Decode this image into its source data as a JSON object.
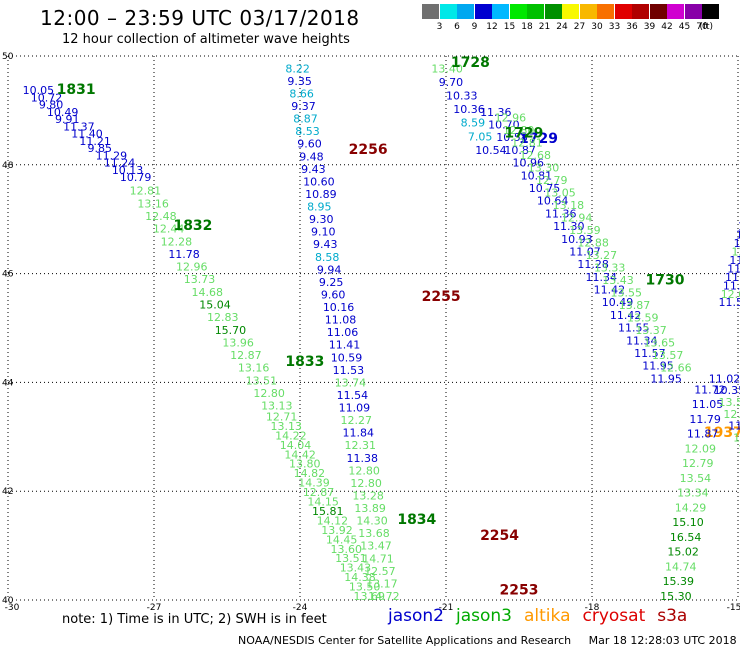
{
  "title": "12:00 – 23:59 UTC 03/17/2018",
  "subtitle": "12 hour collection of altimeter wave heights",
  "colorbar": {
    "unit": "(ft)",
    "colors": [
      "#707070",
      "#00e8e8",
      "#00a8f0",
      "#0000d0",
      "#00b8ff",
      "#00e800",
      "#00c000",
      "#009000",
      "#f8f800",
      "#f8b800",
      "#f87000",
      "#e00000",
      "#b00000",
      "#700000",
      "#d000d0",
      "#8800a8",
      "#000000"
    ],
    "labels": [
      "3",
      "6",
      "9",
      "12",
      "15",
      "18",
      "21",
      "24",
      "27",
      "30",
      "33",
      "36",
      "39",
      "42",
      "45",
      "70"
    ]
  },
  "note": "note: 1) Time is in UTC; 2) SWH is in feet",
  "legend": [
    {
      "name": "jason2",
      "color": "#0000cc"
    },
    {
      "name": "jason3",
      "color": "#00aa00"
    },
    {
      "name": "altika",
      "color": "#ff9900"
    },
    {
      "name": "cryosat",
      "color": "#dd0000"
    },
    {
      "name": "s3a",
      "color": "#aa0000"
    }
  ],
  "footer": {
    "credit": "NOAA/NESDIS Center for Satellite Applications and Research",
    "timestamp": "Mar 18 12:28:03 UTC 2018"
  },
  "chart_data": {
    "type": "scatter",
    "xlim": [
      -30,
      -15
    ],
    "ylim": [
      40,
      50
    ],
    "x_ticks": [
      -30,
      -27,
      -24,
      -21,
      -18,
      -15
    ],
    "y_ticks": [
      40,
      42,
      44,
      46,
      48,
      50
    ],
    "grid": true,
    "tracks": [
      {
        "label": "1831",
        "label_pos": [
          -29.0,
          49.3
        ],
        "color": "#007700",
        "start": [
          -29.7,
          49.3
        ],
        "end": [
          -27.7,
          47.7
        ],
        "points": [
          {
            "v": "10.05",
            "c": "#0000cc"
          },
          {
            "v": "10.72",
            "c": "#0000cc"
          },
          {
            "v": "9.80",
            "c": "#0000cc"
          },
          {
            "v": "10.49",
            "c": "#0000cc"
          },
          {
            "v": "9.91",
            "c": "#0000cc"
          },
          {
            "v": "11.37",
            "c": "#0000cc"
          },
          {
            "v": "11.40",
            "c": "#0000cc"
          },
          {
            "v": "11.21",
            "c": "#0000cc"
          },
          {
            "v": "9.85",
            "c": "#0000cc"
          },
          {
            "v": "11.29",
            "c": "#0000cc"
          },
          {
            "v": "11.24",
            "c": "#0000cc"
          },
          {
            "v": "10.13",
            "c": "#0000cc"
          },
          {
            "v": "10.79",
            "c": "#0000cc"
          }
        ]
      },
      {
        "label": "1832",
        "label_pos": [
          -26.6,
          46.8
        ],
        "color": "#007700",
        "start": [
          -27.5,
          47.45
        ],
        "end": [
          -24.8,
          43.5
        ],
        "points": [
          {
            "v": "12.81",
            "c": "#66dd66"
          },
          {
            "v": "13.16",
            "c": "#66dd66"
          },
          {
            "v": "12.48",
            "c": "#66dd66"
          },
          {
            "v": "12.44",
            "c": "#66dd66"
          },
          {
            "v": "12.28",
            "c": "#66dd66"
          },
          {
            "v": "11.78",
            "c": "#0000cc"
          },
          {
            "v": "12.96",
            "c": "#66dd66"
          },
          {
            "v": "13.73",
            "c": "#66dd66"
          },
          {
            "v": "14.68",
            "c": "#66dd66"
          },
          {
            "v": "15.04",
            "c": "#008800"
          },
          {
            "v": "12.83",
            "c": "#66dd66"
          },
          {
            "v": "15.70",
            "c": "#008800"
          },
          {
            "v": "13.96",
            "c": "#66dd66"
          },
          {
            "v": "12.87",
            "c": "#66dd66"
          },
          {
            "v": "13.16",
            "c": "#66dd66"
          },
          {
            "v": "13.51",
            "c": "#66dd66"
          },
          {
            "v": "12.80",
            "c": "#66dd66"
          },
          {
            "v": "13.13",
            "c": "#66dd66"
          }
        ]
      },
      {
        "label": "1833",
        "label_pos": [
          -24.3,
          44.3
        ],
        "color": "#007700",
        "start": [
          -24.7,
          43.3
        ],
        "end": [
          -22.9,
          40.0
        ],
        "points": [
          {
            "v": "12.71",
            "c": "#66dd66"
          },
          {
            "v": "13.13",
            "c": "#66dd66"
          },
          {
            "v": "14.22",
            "c": "#66dd66"
          },
          {
            "v": "14.04",
            "c": "#66dd66"
          },
          {
            "v": "14.42",
            "c": "#66dd66"
          },
          {
            "v": "13.80",
            "c": "#66dd66"
          },
          {
            "v": "14.82",
            "c": "#66dd66"
          },
          {
            "v": "14.39",
            "c": "#66dd66"
          },
          {
            "v": "12.87",
            "c": "#66dd66"
          },
          {
            "v": "14.15",
            "c": "#66dd66"
          },
          {
            "v": "15.81",
            "c": "#008800"
          },
          {
            "v": "14.12",
            "c": "#66dd66"
          },
          {
            "v": "13.92",
            "c": "#66dd66"
          },
          {
            "v": "14.45",
            "c": "#66dd66"
          },
          {
            "v": "13.60",
            "c": "#66dd66"
          },
          {
            "v": "13.51",
            "c": "#66dd66"
          },
          {
            "v": "13.43",
            "c": "#66dd66"
          },
          {
            "v": "14.38",
            "c": "#66dd66"
          },
          {
            "v": "13.50",
            "c": "#66dd66"
          },
          {
            "v": "13.69",
            "c": "#66dd66"
          }
        ]
      },
      {
        "label": "1834",
        "label_pos": [
          -22.0,
          41.4
        ],
        "color": "#007700",
        "points": []
      },
      {
        "label": "2256",
        "label_pos": [
          -23.0,
          48.2
        ],
        "color": "#880000",
        "start": [
          -24.3,
          49.7
        ],
        "end": [
          -22.6,
          40.0
        ],
        "points": [
          {
            "v": "8.22",
            "c": "#00aacc"
          },
          {
            "v": "9.35",
            "c": "#0000cc"
          },
          {
            "v": "8.66",
            "c": "#00aacc"
          },
          {
            "v": "9.37",
            "c": "#0000cc"
          },
          {
            "v": "8.87",
            "c": "#00aacc"
          },
          {
            "v": "8.53",
            "c": "#00aacc"
          },
          {
            "v": "9.60",
            "c": "#0000cc"
          },
          {
            "v": "9.48",
            "c": "#0000cc"
          },
          {
            "v": "9.43",
            "c": "#0000cc"
          },
          {
            "v": "10.60",
            "c": "#0000cc"
          },
          {
            "v": "10.89",
            "c": "#0000cc"
          },
          {
            "v": "8.95",
            "c": "#00aacc"
          },
          {
            "v": "9.30",
            "c": "#0000cc"
          },
          {
            "v": "9.10",
            "c": "#0000cc"
          },
          {
            "v": "9.43",
            "c": "#0000cc"
          },
          {
            "v": "8.58",
            "c": "#00aacc"
          },
          {
            "v": "9.94",
            "c": "#0000cc"
          },
          {
            "v": "9.25",
            "c": "#0000cc"
          },
          {
            "v": "9.60",
            "c": "#0000cc"
          },
          {
            "v": "10.16",
            "c": "#0000cc"
          },
          {
            "v": "11.08",
            "c": "#0000cc"
          },
          {
            "v": "11.06",
            "c": "#0000cc"
          },
          {
            "v": "11.41",
            "c": "#0000cc"
          },
          {
            "v": "10.59",
            "c": "#0000cc"
          },
          {
            "v": "11.53",
            "c": "#0000cc"
          },
          {
            "v": "13.74",
            "c": "#66dd66"
          },
          {
            "v": "11.54",
            "c": "#0000cc"
          },
          {
            "v": "11.09",
            "c": "#0000cc"
          },
          {
            "v": "12.27",
            "c": "#66dd66"
          },
          {
            "v": "11.84",
            "c": "#0000cc"
          },
          {
            "v": "12.31",
            "c": "#66dd66"
          },
          {
            "v": "11.38",
            "c": "#0000cc"
          },
          {
            "v": "12.80",
            "c": "#66dd66"
          },
          {
            "v": "12.80",
            "c": "#66dd66"
          },
          {
            "v": "13.28",
            "c": "#66dd66"
          },
          {
            "v": "13.89",
            "c": "#66dd66"
          },
          {
            "v": "14.30",
            "c": "#66dd66"
          },
          {
            "v": "13.68",
            "c": "#66dd66"
          },
          {
            "v": "13.47",
            "c": "#66dd66"
          },
          {
            "v": "14.71",
            "c": "#66dd66"
          },
          {
            "v": "12.57",
            "c": "#66dd66"
          },
          {
            "v": "13.17",
            "c": "#66dd66"
          },
          {
            "v": "14.72",
            "c": "#66dd66"
          }
        ]
      },
      {
        "label": "2255",
        "label_pos": [
          -21.5,
          45.5
        ],
        "color": "#880000",
        "points": []
      },
      {
        "label": "2254",
        "label_pos": [
          -20.3,
          41.1
        ],
        "color": "#880000",
        "points": []
      },
      {
        "label": "2253",
        "label_pos": [
          -19.9,
          40.1
        ],
        "color": "#880000",
        "points": []
      },
      {
        "label": "1728",
        "label_pos": [
          -20.9,
          49.8
        ],
        "color": "#007700",
        "start": [
          -21.3,
          49.7
        ],
        "end": [
          -20.4,
          48.2
        ],
        "points": [
          {
            "v": "13.40",
            "c": "#66dd66"
          },
          {
            "v": "9.70",
            "c": "#0000cc"
          },
          {
            "v": "10.33",
            "c": "#0000cc"
          },
          {
            "v": "10.36",
            "c": "#0000cc"
          },
          {
            "v": "8.59",
            "c": "#00aacc"
          },
          {
            "v": "7.05",
            "c": "#00aacc"
          },
          {
            "v": "10.54",
            "c": "#0000cc"
          }
        ]
      },
      {
        "label": "1729",
        "label_pos": [
          -19.5,
          48.4
        ],
        "color": "#0000cc",
        "start": [
          -20.3,
          48.9
        ],
        "end": [
          -16.8,
          44.0
        ],
        "points": [
          {
            "v": "11.36",
            "c": "#0000cc"
          },
          {
            "v": "10.70",
            "c": "#0000cc"
          },
          {
            "v": "10.58",
            "c": "#0000cc"
          },
          {
            "v": "10.87",
            "c": "#0000cc"
          },
          {
            "v": "10.96",
            "c": "#0000cc"
          },
          {
            "v": "10.81",
            "c": "#0000cc"
          },
          {
            "v": "10.75",
            "c": "#0000cc"
          },
          {
            "v": "10.64",
            "c": "#0000cc"
          },
          {
            "v": "11.36",
            "c": "#0000cc"
          },
          {
            "v": "11.30",
            "c": "#0000cc"
          },
          {
            "v": "10.93",
            "c": "#0000cc"
          },
          {
            "v": "11.07",
            "c": "#0000cc"
          },
          {
            "v": "11.28",
            "c": "#0000cc"
          },
          {
            "v": "11.34",
            "c": "#0000cc"
          },
          {
            "v": "11.42",
            "c": "#0000cc"
          },
          {
            "v": "10.49",
            "c": "#0000cc"
          },
          {
            "v": "11.42",
            "c": "#0000cc"
          },
          {
            "v": "11.55",
            "c": "#0000cc"
          },
          {
            "v": "11.34",
            "c": "#0000cc"
          },
          {
            "v": "11.57",
            "c": "#0000cc"
          },
          {
            "v": "11.95",
            "c": "#0000cc"
          },
          {
            "v": "11.95",
            "c": "#0000cc"
          }
        ]
      },
      {
        "label": "1730",
        "label_pos": [
          -16.9,
          45.8
        ],
        "color": "#007700",
        "points": []
      },
      {
        "label": "1729",
        "label_pos": [
          -19.8,
          48.5
        ],
        "color": "#007700",
        "start": [
          -20.0,
          48.8
        ],
        "end": [
          -16.6,
          44.2
        ],
        "points": [
          {
            "v": "12.96",
            "c": "#66dd66"
          },
          {
            "v": "12.80",
            "c": "#66dd66"
          },
          {
            "v": "12.81",
            "c": "#66dd66"
          },
          {
            "v": "12.68",
            "c": "#66dd66"
          },
          {
            "v": "13.30",
            "c": "#66dd66"
          },
          {
            "v": "12.79",
            "c": "#66dd66"
          },
          {
            "v": "13.05",
            "c": "#66dd66"
          },
          {
            "v": "13.18",
            "c": "#66dd66"
          },
          {
            "v": "12.94",
            "c": "#66dd66"
          },
          {
            "v": "13.59",
            "c": "#66dd66"
          },
          {
            "v": "12.88",
            "c": "#66dd66"
          },
          {
            "v": "13.27",
            "c": "#66dd66"
          },
          {
            "v": "13.33",
            "c": "#66dd66"
          },
          {
            "v": "13.43",
            "c": "#66dd66"
          },
          {
            "v": "13.55",
            "c": "#66dd66"
          },
          {
            "v": "13.87",
            "c": "#66dd66"
          },
          {
            "v": "13.59",
            "c": "#66dd66"
          },
          {
            "v": "13.37",
            "c": "#66dd66"
          },
          {
            "v": "13.65",
            "c": "#66dd66"
          },
          {
            "v": "13.57",
            "c": "#66dd66"
          },
          {
            "v": "12.66",
            "c": "#66dd66"
          }
        ]
      },
      {
        "label": "1937",
        "label_pos": [
          -15.7,
          43.0
        ],
        "color": "#ff9900",
        "points": []
      },
      {
        "label": "",
        "start": [
          -15.9,
          43.8
        ],
        "end": [
          -16.6,
          40.0
        ],
        "color": "#66dd66",
        "points": [
          {
            "v": "11.72",
            "c": "#0000cc"
          },
          {
            "v": "11.05",
            "c": "#0000cc"
          },
          {
            "v": "11.79",
            "c": "#0000cc"
          },
          {
            "v": "11.87",
            "c": "#0000cc"
          },
          {
            "v": "12.09",
            "c": "#66dd66"
          },
          {
            "v": "12.79",
            "c": "#66dd66"
          },
          {
            "v": "13.54",
            "c": "#66dd66"
          },
          {
            "v": "13.34",
            "c": "#66dd66"
          },
          {
            "v": "14.29",
            "c": "#66dd66"
          },
          {
            "v": "15.10",
            "c": "#008800"
          },
          {
            "v": "16.54",
            "c": "#008800"
          },
          {
            "v": "15.02",
            "c": "#008800"
          },
          {
            "v": "14.74",
            "c": "#66dd66"
          },
          {
            "v": "15.39",
            "c": "#008800"
          },
          {
            "v": "15.30",
            "c": "#008800"
          }
        ]
      },
      {
        "label": "",
        "start": [
          -15.4,
          45.4
        ],
        "end": [
          -15.0,
          46.8
        ],
        "color": "#0000cc",
        "points": [
          {
            "v": "11.57",
            "c": "#0000cc"
          },
          {
            "v": "12.62",
            "c": "#66dd66"
          },
          {
            "v": "11.79",
            "c": "#0000cc"
          },
          {
            "v": "11.67",
            "c": "#0000cc"
          },
          {
            "v": "11.83",
            "c": "#0000cc"
          },
          {
            "v": "11.88",
            "c": "#0000cc"
          },
          {
            "v": "12.2",
            "c": "#66dd66"
          },
          {
            "v": "11.5",
            "c": "#0000cc"
          },
          {
            "v": "11.",
            "c": "#0000cc"
          },
          {
            "v": "11",
            "c": "#0000cc"
          }
        ]
      },
      {
        "label": "",
        "start": [
          -15.6,
          44.0
        ],
        "end": [
          -15.0,
          42.7
        ],
        "color": "#66dd66",
        "points": [
          {
            "v": "11.02",
            "c": "#0000cc"
          },
          {
            "v": "10.35",
            "c": "#0000cc"
          },
          {
            "v": "13.58",
            "c": "#66dd66"
          },
          {
            "v": "12.10",
            "c": "#66dd66"
          },
          {
            "v": "11.38",
            "c": "#0000cc"
          },
          {
            "v": "13.98",
            "c": "#66dd66"
          },
          {
            "v": "13.58",
            "c": "#66dd66"
          }
        ]
      }
    ]
  }
}
